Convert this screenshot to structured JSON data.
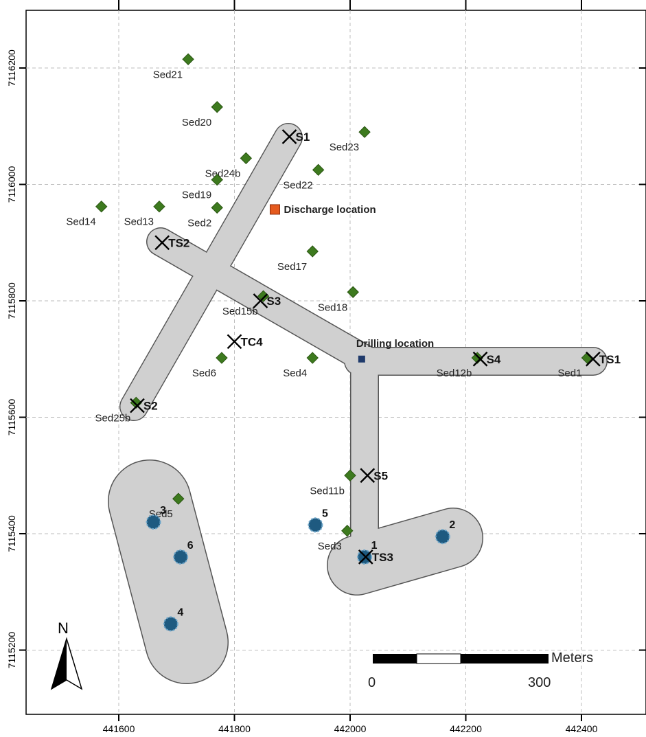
{
  "axes": {
    "x_ticks": [
      {
        "label": "441600",
        "v": 441600
      },
      {
        "label": "441800",
        "v": 441800
      },
      {
        "label": "442000",
        "v": 442000
      },
      {
        "label": "442200",
        "v": 442200
      },
      {
        "label": "442400",
        "v": 442400
      }
    ],
    "y_ticks": [
      {
        "label": "7116200",
        "v": 7116200
      },
      {
        "label": "7116000",
        "v": 7116000
      },
      {
        "label": "7115800",
        "v": 7115800
      },
      {
        "label": "7115600",
        "v": 7115600
      },
      {
        "label": "7115400",
        "v": 7115400
      },
      {
        "label": "7115200",
        "v": 7115200
      }
    ]
  },
  "sediment_samples": [
    {
      "label": "Sed21",
      "x": 441720,
      "y": 7116215
    },
    {
      "label": "Sed20",
      "x": 441770,
      "y": 7116133
    },
    {
      "label": "Sed23",
      "x": 442025,
      "y": 7116090
    },
    {
      "label": "Sed24b",
      "x": 441820,
      "y": 7116045
    },
    {
      "label": "Sed19",
      "x": 441770,
      "y": 7116008
    },
    {
      "label": "Sed22",
      "x": 441945,
      "y": 7116025
    },
    {
      "label": "Sed14",
      "x": 441570,
      "y": 7115962
    },
    {
      "label": "Sed13",
      "x": 441670,
      "y": 7115962
    },
    {
      "label": "Sed2",
      "x": 441770,
      "y": 7115960
    },
    {
      "label": "Sed17",
      "x": 441935,
      "y": 7115885
    },
    {
      "label": "Sed18",
      "x": 442005,
      "y": 7115815
    },
    {
      "label": "Sed15b",
      "x": 441850,
      "y": 7115808
    },
    {
      "label": "Sed6",
      "x": 441778,
      "y": 7115702
    },
    {
      "label": "Sed4",
      "x": 441935,
      "y": 7115702
    },
    {
      "label": "Sed12b",
      "x": 442220,
      "y": 7115702
    },
    {
      "label": "Sed1",
      "x": 442410,
      "y": 7115702
    },
    {
      "label": "Sed25b",
      "x": 441630,
      "y": 7115625
    },
    {
      "label": "Sed11b",
      "x": 442000,
      "y": 7115500
    },
    {
      "label": "Sed5",
      "x": 441703,
      "y": 7115460
    },
    {
      "label": "Sed3",
      "x": 441995,
      "y": 7115405
    }
  ],
  "stations": [
    {
      "label": "S1",
      "x": 441895,
      "y": 7116082
    },
    {
      "label": "TS2",
      "x": 441675,
      "y": 7115900
    },
    {
      "label": "S3",
      "x": 441845,
      "y": 7115800
    },
    {
      "label": "TC4",
      "x": 441800,
      "y": 7115730
    },
    {
      "label": "S4",
      "x": 442225,
      "y": 7115700
    },
    {
      "label": "TS1",
      "x": 442420,
      "y": 7115700
    },
    {
      "label": "S2",
      "x": 441632,
      "y": 7115620
    },
    {
      "label": "S5",
      "x": 442030,
      "y": 7115500
    },
    {
      "label": "TS3",
      "x": 442027,
      "y": 7115360
    }
  ],
  "wells": [
    {
      "label": "3",
      "x": 441660,
      "y": 7115420
    },
    {
      "label": "6",
      "x": 441707,
      "y": 7115360
    },
    {
      "label": "4",
      "x": 441690,
      "y": 7115245
    },
    {
      "label": "5",
      "x": 441940,
      "y": 7115415
    },
    {
      "label": "1",
      "x": 442025,
      "y": 7115360
    },
    {
      "label": "2",
      "x": 442160,
      "y": 7115395
    }
  ],
  "discharge": {
    "label": "Discharge location",
    "x": 441870,
    "y": 7115957
  },
  "drilling": {
    "label": "Drilling location",
    "x": 442020,
    "y": 7115700
  },
  "scale_bar": {
    "unit": "Meters",
    "start_label": "0",
    "end_label": "300"
  },
  "north_arrow": {
    "label": "N"
  },
  "colors": {
    "sediment": "#3d7a1e",
    "well": "#1e5a80",
    "buffer_fill": "#d0d0d0",
    "discharge": "#e55a1e",
    "drilling": "#1f3a6b"
  }
}
